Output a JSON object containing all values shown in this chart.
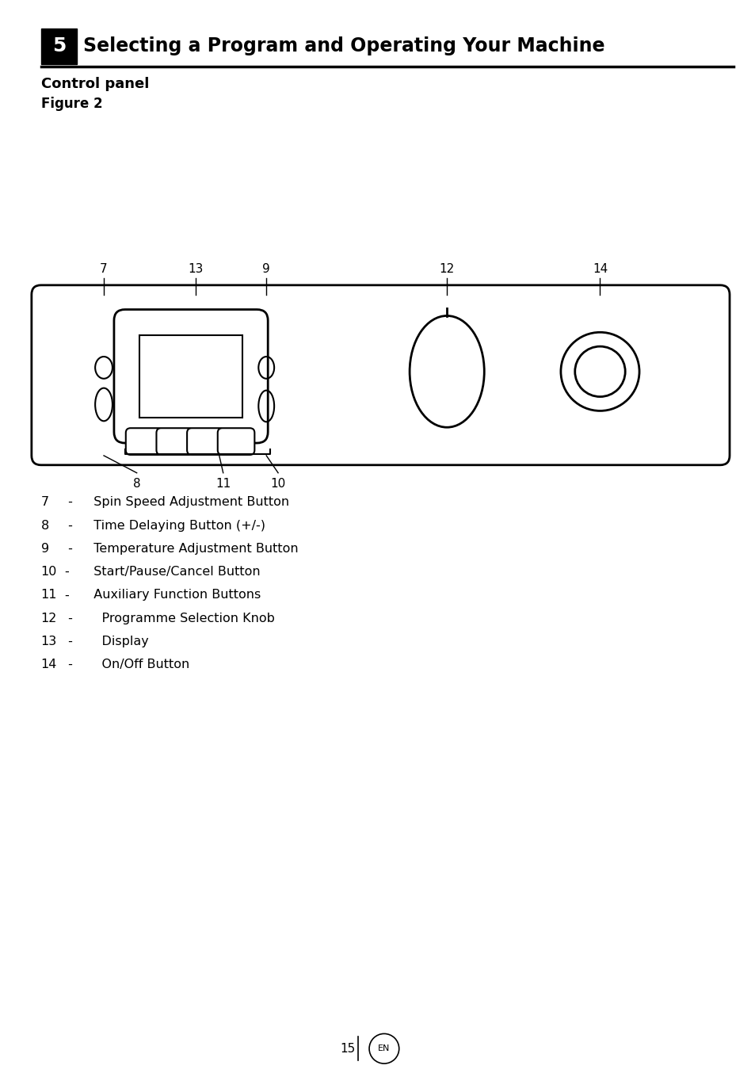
{
  "title_number": "5",
  "title_text": "Selecting a Program and Operating Your Machine",
  "subtitle": "Control panel",
  "figure_label": "Figure 2",
  "bg_color": "#ffffff",
  "text_color": "#000000",
  "page_number": "15",
  "fig_w": 9.54,
  "fig_h": 13.54,
  "legend_lines": [
    {
      "prefix": "7  - ",
      "text": " Spin Speed Adjustment Button"
    },
    {
      "prefix": "8  - ",
      "text": " Time Delaying Button (+/-)"
    },
    {
      "prefix": "9  - ",
      "text": " Temperature Adjustment Button"
    },
    {
      "prefix": "10-",
      "text": "  Start/Pause/Cancel Button"
    },
    {
      "prefix": "11-",
      "text": "  Auxiliary Function Buttons"
    },
    {
      "prefix": "12 -",
      "text": "    Programme Selection Knob"
    },
    {
      "prefix": "13 -",
      "text": "    Display"
    },
    {
      "prefix": "14 -",
      "text": "    On/Off Button"
    }
  ]
}
